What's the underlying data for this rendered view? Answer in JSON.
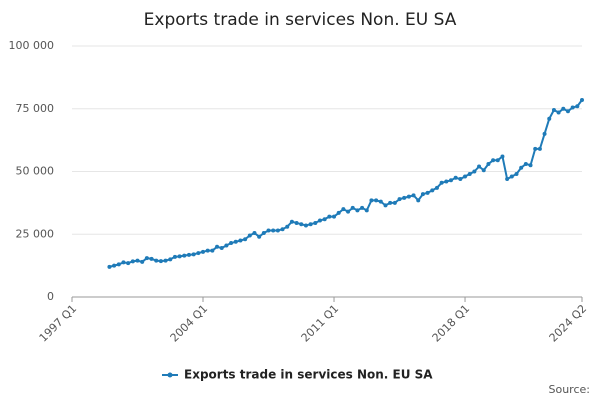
{
  "chart_data": {
    "type": "line",
    "title": "Exports trade in services Non. EU SA",
    "source": "Source:",
    "categories": [
      "1997 Q1",
      null,
      null,
      null,
      null,
      null,
      null,
      null,
      null,
      null,
      null,
      null,
      null,
      null,
      null,
      null,
      null,
      null,
      null,
      null,
      null,
      null,
      null,
      null,
      null,
      null,
      null,
      null,
      "2004 Q1",
      null,
      null,
      null,
      null,
      null,
      null,
      null,
      null,
      null,
      null,
      null,
      null,
      null,
      null,
      null,
      null,
      null,
      null,
      null,
      null,
      null,
      null,
      null,
      null,
      null,
      null,
      null,
      "2011 Q1",
      null,
      null,
      null,
      null,
      null,
      null,
      null,
      null,
      null,
      null,
      null,
      null,
      null,
      null,
      null,
      null,
      null,
      null,
      null,
      null,
      null,
      null,
      null,
      null,
      null,
      null,
      null,
      "2018 Q1",
      null,
      null,
      null,
      null,
      null,
      null,
      null,
      null,
      null,
      null,
      null,
      null,
      null,
      null,
      null,
      null,
      null,
      null,
      null,
      null,
      null,
      null,
      null,
      null,
      "2024 Q2"
    ],
    "series": [
      {
        "name": "Exports trade in services Non. EU SA",
        "color": "#1f7bb8",
        "values": [
          null,
          null,
          null,
          null,
          null,
          null,
          null,
          null,
          12000,
          12500,
          13000,
          13800,
          13500,
          14200,
          14500,
          14000,
          15500,
          15200,
          14500,
          14300,
          14500,
          15000,
          16000,
          16200,
          16500,
          16800,
          17000,
          17500,
          18000,
          18500,
          18500,
          20000,
          19500,
          20500,
          21500,
          22000,
          22500,
          23000,
          24500,
          25500,
          24000,
          25500,
          26500,
          26500,
          26500,
          27000,
          28000,
          30000,
          29500,
          29000,
          28500,
          29000,
          29500,
          30500,
          31000,
          32000,
          32000,
          33500,
          35000,
          34000,
          35500,
          34500,
          35500,
          34500,
          38500,
          38500,
          38000,
          36500,
          37500,
          37500,
          39000,
          39500,
          40000,
          40500,
          38500,
          41000,
          41500,
          42500,
          43500,
          45500,
          46000,
          46500,
          47500,
          47000,
          48000,
          49000,
          50000,
          52000,
          50500,
          53000,
          54500,
          54500,
          56000,
          47000,
          48000,
          49000,
          51500,
          53000,
          52500,
          59000,
          59000,
          65000,
          71000,
          74500,
          73500,
          75000,
          74000,
          75500,
          76000,
          78500
        ]
      }
    ],
    "ylim": [
      0,
      100000
    ],
    "yticks": [
      {
        "value": 0,
        "label": "0"
      },
      {
        "value": 25000,
        "label": "25 000"
      },
      {
        "value": 50000,
        "label": "50 000"
      },
      {
        "value": 75000,
        "label": "75 000"
      },
      {
        "value": 100000,
        "label": "100 000"
      }
    ],
    "grid": true,
    "legend": "bottom"
  }
}
